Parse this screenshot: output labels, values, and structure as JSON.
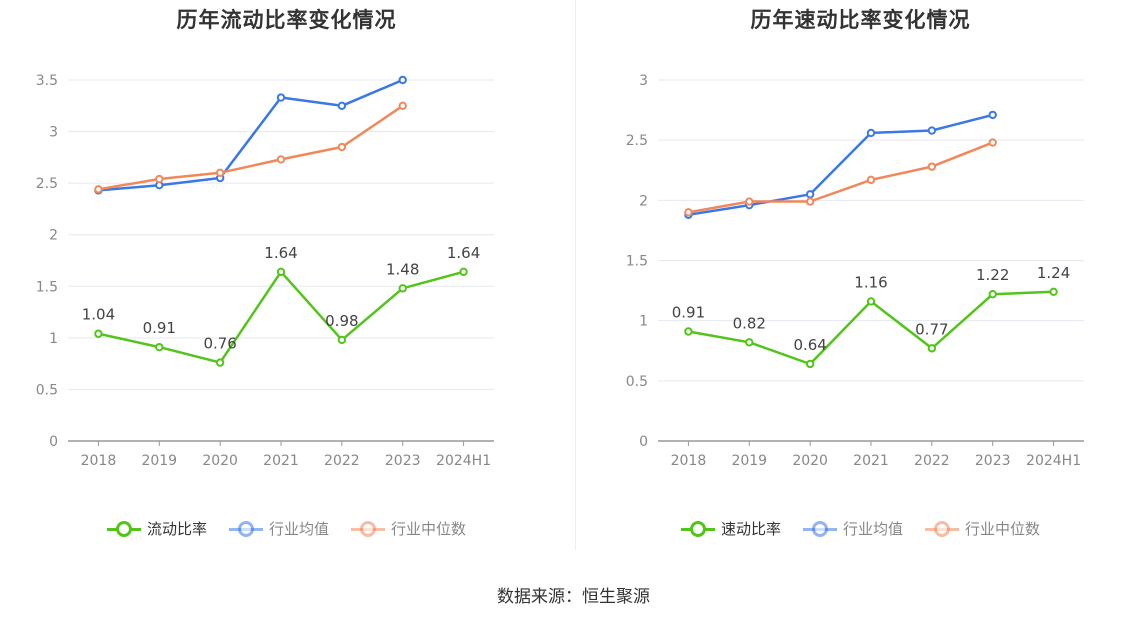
{
  "source": "数据来源：恒生聚源",
  "chart_data": [
    {
      "type": "line",
      "title": "历年流动比率变化情况",
      "categories": [
        "2018",
        "2019",
        "2020",
        "2021",
        "2022",
        "2023",
        "2024H1"
      ],
      "ylim": [
        0,
        3.5
      ],
      "yticks": [
        "0",
        "0.5",
        "1",
        "1.5",
        "2",
        "2.5",
        "3",
        "3.5"
      ],
      "grid": true,
      "legend_position": "bottom",
      "series": [
        {
          "name": "流动比率",
          "color": "#52c41a",
          "values": [
            1.04,
            0.91,
            0.76,
            1.64,
            0.98,
            1.48,
            1.64
          ],
          "labels": [
            "1.04",
            "0.91",
            "0.76",
            "1.64",
            "0.98",
            "1.48",
            "1.64"
          ]
        },
        {
          "name": "行业均值",
          "color": "#3b78e7",
          "values": [
            2.43,
            2.48,
            2.55,
            3.33,
            3.25,
            3.5,
            null
          ]
        },
        {
          "name": "行业中位数",
          "color": "#f0885a",
          "values": [
            2.44,
            2.54,
            2.6,
            2.73,
            2.85,
            3.25,
            null
          ]
        }
      ]
    },
    {
      "type": "line",
      "title": "历年速动比率变化情况",
      "categories": [
        "2018",
        "2019",
        "2020",
        "2021",
        "2022",
        "2023",
        "2024H1"
      ],
      "ylim": [
        0,
        3
      ],
      "yticks": [
        "0",
        "0.5",
        "1",
        "1.5",
        "2",
        "2.5",
        "3"
      ],
      "grid": true,
      "legend_position": "bottom",
      "series": [
        {
          "name": "速动比率",
          "color": "#52c41a",
          "values": [
            0.91,
            0.82,
            0.64,
            1.16,
            0.77,
            1.22,
            1.24
          ],
          "labels": [
            "0.91",
            "0.82",
            "0.64",
            "1.16",
            "0.77",
            "1.22",
            "1.24"
          ]
        },
        {
          "name": "行业均值",
          "color": "#3b78e7",
          "values": [
            1.88,
            1.96,
            2.05,
            2.56,
            2.58,
            2.71,
            null
          ]
        },
        {
          "name": "行业中位数",
          "color": "#f0885a",
          "values": [
            1.9,
            1.99,
            1.99,
            2.17,
            2.28,
            2.48,
            null
          ]
        }
      ]
    }
  ]
}
